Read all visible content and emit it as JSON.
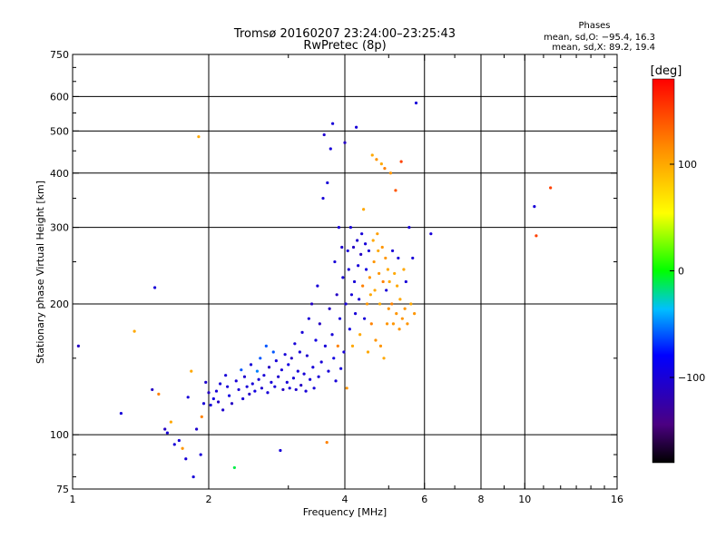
{
  "chart_data": {
    "type": "scatter",
    "title": "Tromsø 20160207 23:24:00–23:25:43",
    "subtitle": "RwPretec (8p)",
    "phase_info": {
      "heading": "Phases",
      "line_o": "mean, sd,O: −95.4, 16.3",
      "line_x": "mean, sd,X:  89.2, 19.4"
    },
    "xlabel": "Frequency [MHz]",
    "ylabel": "Stationary phase Virtual Height [km]",
    "x_scale": "log",
    "y_scale": "log",
    "xlim": [
      1,
      16
    ],
    "ylim": [
      75,
      750
    ],
    "x_ticks": [
      {
        "value": 1,
        "label": "1"
      },
      {
        "value": 2,
        "label": "2"
      },
      {
        "value": 4,
        "label": "4"
      },
      {
        "value": 6,
        "label": "6"
      },
      {
        "value": 8,
        "label": "8"
      },
      {
        "value": 10,
        "label": "10"
      },
      {
        "value": 16,
        "label": "16"
      }
    ],
    "x_gridlines": [
      2,
      4,
      6,
      8,
      10
    ],
    "y_ticks": [
      {
        "value": 75,
        "label": "75"
      },
      {
        "value": 100,
        "label": "100"
      },
      {
        "value": 200,
        "label": "200"
      },
      {
        "value": 300,
        "label": "300"
      },
      {
        "value": 400,
        "label": "400"
      },
      {
        "value": 500,
        "label": "500"
      },
      {
        "value": 600,
        "label": "600"
      },
      {
        "value": 750,
        "label": "750"
      }
    ],
    "y_gridlines": [
      100,
      200,
      300,
      400,
      500,
      600
    ],
    "grid": true,
    "colorbar": {
      "title": "[deg]",
      "range": [
        -180,
        180
      ],
      "ticks": [
        {
          "value": 100,
          "label": "100"
        },
        {
          "value": 0,
          "label": "0"
        },
        {
          "value": -100,
          "label": "−100"
        }
      ]
    },
    "points": [
      [
        1.03,
        160,
        -110
      ],
      [
        1.28,
        112,
        -100
      ],
      [
        1.37,
        173,
        100
      ],
      [
        1.5,
        127,
        -110
      ],
      [
        1.52,
        218,
        -100
      ],
      [
        1.55,
        124,
        120
      ],
      [
        1.6,
        103,
        -110
      ],
      [
        1.62,
        101,
        -100
      ],
      [
        1.65,
        107,
        100
      ],
      [
        1.68,
        95,
        -100
      ],
      [
        1.72,
        97,
        -100
      ],
      [
        1.75,
        93,
        110
      ],
      [
        1.78,
        88,
        -100
      ],
      [
        1.8,
        122,
        -100
      ],
      [
        1.83,
        140,
        100
      ],
      [
        1.85,
        80,
        -100
      ],
      [
        1.88,
        103,
        -105
      ],
      [
        1.9,
        485,
        100
      ],
      [
        1.92,
        90,
        -100
      ],
      [
        1.93,
        110,
        120
      ],
      [
        1.95,
        118,
        -100
      ],
      [
        1.97,
        132,
        -105
      ],
      [
        2.0,
        125,
        -110
      ],
      [
        2.02,
        117,
        -100
      ],
      [
        2.05,
        121,
        -95
      ],
      [
        2.08,
        126,
        -100
      ],
      [
        2.1,
        119,
        -110
      ],
      [
        2.12,
        131,
        -100
      ],
      [
        2.15,
        114,
        -105
      ],
      [
        2.18,
        137,
        -100
      ],
      [
        2.2,
        129,
        -100
      ],
      [
        2.22,
        123,
        -95
      ],
      [
        2.25,
        118,
        -110
      ],
      [
        2.28,
        84,
        -10
      ],
      [
        2.3,
        133,
        -100
      ],
      [
        2.33,
        127,
        -100
      ],
      [
        2.36,
        141,
        -60
      ],
      [
        2.38,
        121,
        -100
      ],
      [
        2.4,
        136,
        -105
      ],
      [
        2.43,
        129,
        -100
      ],
      [
        2.46,
        124,
        -110
      ],
      [
        2.48,
        145,
        -100
      ],
      [
        2.5,
        131,
        -100
      ],
      [
        2.53,
        126,
        -95
      ],
      [
        2.56,
        140,
        -50
      ],
      [
        2.58,
        134,
        -100
      ],
      [
        2.6,
        150,
        -60
      ],
      [
        2.62,
        128,
        -105
      ],
      [
        2.65,
        137,
        -100
      ],
      [
        2.68,
        160,
        -60
      ],
      [
        2.7,
        125,
        -100
      ],
      [
        2.72,
        143,
        -110
      ],
      [
        2.75,
        132,
        -100
      ],
      [
        2.78,
        155,
        -60
      ],
      [
        2.8,
        129,
        -100
      ],
      [
        2.82,
        148,
        -100
      ],
      [
        2.85,
        136,
        -105
      ],
      [
        2.88,
        92,
        -100
      ],
      [
        2.9,
        141,
        -100
      ],
      [
        2.92,
        127,
        -110
      ],
      [
        2.95,
        153,
        -100
      ],
      [
        2.98,
        132,
        -100
      ],
      [
        3.0,
        145,
        -95
      ],
      [
        3.02,
        128,
        -100
      ],
      [
        3.05,
        150,
        -110
      ],
      [
        3.08,
        135,
        -100
      ],
      [
        3.1,
        162,
        -100
      ],
      [
        3.12,
        127,
        -105
      ],
      [
        3.15,
        140,
        -100
      ],
      [
        3.18,
        155,
        -100
      ],
      [
        3.2,
        130,
        -110
      ],
      [
        3.22,
        172,
        -100
      ],
      [
        3.25,
        138,
        -100
      ],
      [
        3.28,
        126,
        -100
      ],
      [
        3.3,
        152,
        -105
      ],
      [
        3.33,
        185,
        -100
      ],
      [
        3.35,
        134,
        -100
      ],
      [
        3.38,
        200,
        -110
      ],
      [
        3.4,
        143,
        -100
      ],
      [
        3.42,
        128,
        -100
      ],
      [
        3.45,
        165,
        -95
      ],
      [
        3.48,
        220,
        -100
      ],
      [
        3.5,
        136,
        -100
      ],
      [
        3.52,
        180,
        -110
      ],
      [
        3.55,
        147,
        -100
      ],
      [
        3.58,
        350,
        -100
      ],
      [
        3.6,
        490,
        -105
      ],
      [
        3.62,
        160,
        -100
      ],
      [
        3.65,
        96,
        120
      ],
      [
        3.66,
        380,
        -100
      ],
      [
        3.68,
        140,
        -100
      ],
      [
        3.7,
        195,
        -110
      ],
      [
        3.72,
        455,
        -100
      ],
      [
        3.75,
        170,
        -100
      ],
      [
        3.76,
        520,
        -100
      ],
      [
        3.78,
        150,
        -95
      ],
      [
        3.8,
        250,
        -100
      ],
      [
        3.82,
        133,
        -100
      ],
      [
        3.84,
        210,
        -110
      ],
      [
        3.86,
        160,
        120
      ],
      [
        3.88,
        300,
        -100
      ],
      [
        3.9,
        185,
        -100
      ],
      [
        3.92,
        142,
        -100
      ],
      [
        3.94,
        270,
        -105
      ],
      [
        3.96,
        230,
        -100
      ],
      [
        3.98,
        155,
        -100
      ],
      [
        4.0,
        470,
        -110
      ],
      [
        4.02,
        200,
        -100
      ],
      [
        4.04,
        128,
        110
      ],
      [
        4.06,
        265,
        -100
      ],
      [
        4.08,
        240,
        -100
      ],
      [
        4.1,
        175,
        -95
      ],
      [
        4.12,
        300,
        -100
      ],
      [
        4.14,
        210,
        -100
      ],
      [
        4.16,
        160,
        100
      ],
      [
        4.18,
        270,
        -110
      ],
      [
        4.2,
        225,
        -100
      ],
      [
        4.22,
        190,
        -100
      ],
      [
        4.24,
        510,
        -100
      ],
      [
        4.26,
        280,
        -105
      ],
      [
        4.28,
        245,
        -100
      ],
      [
        4.3,
        205,
        -100
      ],
      [
        4.32,
        170,
        100
      ],
      [
        4.34,
        260,
        -110
      ],
      [
        4.36,
        290,
        -100
      ],
      [
        4.38,
        220,
        120
      ],
      [
        4.4,
        330,
        100
      ],
      [
        4.42,
        185,
        -100
      ],
      [
        4.44,
        275,
        -100
      ],
      [
        4.46,
        240,
        -95
      ],
      [
        4.48,
        200,
        110
      ],
      [
        4.5,
        155,
        100
      ],
      [
        4.52,
        265,
        -100
      ],
      [
        4.54,
        230,
        110
      ],
      [
        4.56,
        210,
        100
      ],
      [
        4.58,
        180,
        120
      ],
      [
        4.6,
        440,
        100
      ],
      [
        4.62,
        280,
        100
      ],
      [
        4.64,
        250,
        110
      ],
      [
        4.66,
        215,
        100
      ],
      [
        4.68,
        165,
        110
      ],
      [
        4.7,
        430,
        110
      ],
      [
        4.72,
        290,
        105
      ],
      [
        4.74,
        265,
        100
      ],
      [
        4.76,
        235,
        110
      ],
      [
        4.78,
        200,
        100
      ],
      [
        4.8,
        160,
        110
      ],
      [
        4.82,
        420,
        100
      ],
      [
        4.84,
        270,
        110
      ],
      [
        4.86,
        225,
        120
      ],
      [
        4.88,
        150,
        100
      ],
      [
        4.9,
        410,
        120
      ],
      [
        4.92,
        255,
        110
      ],
      [
        4.94,
        215,
        -100
      ],
      [
        4.96,
        180,
        110
      ],
      [
        4.98,
        240,
        100
      ],
      [
        5.0,
        195,
        110
      ],
      [
        5.02,
        225,
        100
      ],
      [
        5.05,
        400,
        110
      ],
      [
        5.08,
        200,
        120
      ],
      [
        5.1,
        265,
        -100
      ],
      [
        5.12,
        180,
        110
      ],
      [
        5.15,
        235,
        100
      ],
      [
        5.18,
        365,
        140
      ],
      [
        5.2,
        190,
        110
      ],
      [
        5.22,
        220,
        100
      ],
      [
        5.25,
        255,
        -100
      ],
      [
        5.28,
        175,
        110
      ],
      [
        5.3,
        205,
        100
      ],
      [
        5.33,
        425,
        150
      ],
      [
        5.36,
        185,
        110
      ],
      [
        5.4,
        240,
        100
      ],
      [
        5.43,
        195,
        110
      ],
      [
        5.46,
        225,
        -100
      ],
      [
        5.5,
        180,
        110
      ],
      [
        5.55,
        300,
        -100
      ],
      [
        5.6,
        200,
        100
      ],
      [
        5.65,
        255,
        -100
      ],
      [
        5.7,
        190,
        110
      ],
      [
        5.75,
        580,
        -100
      ],
      [
        6.2,
        290,
        -100
      ],
      [
        10.5,
        335,
        -100
      ],
      [
        10.6,
        287,
        150
      ],
      [
        11.4,
        370,
        150
      ]
    ]
  }
}
